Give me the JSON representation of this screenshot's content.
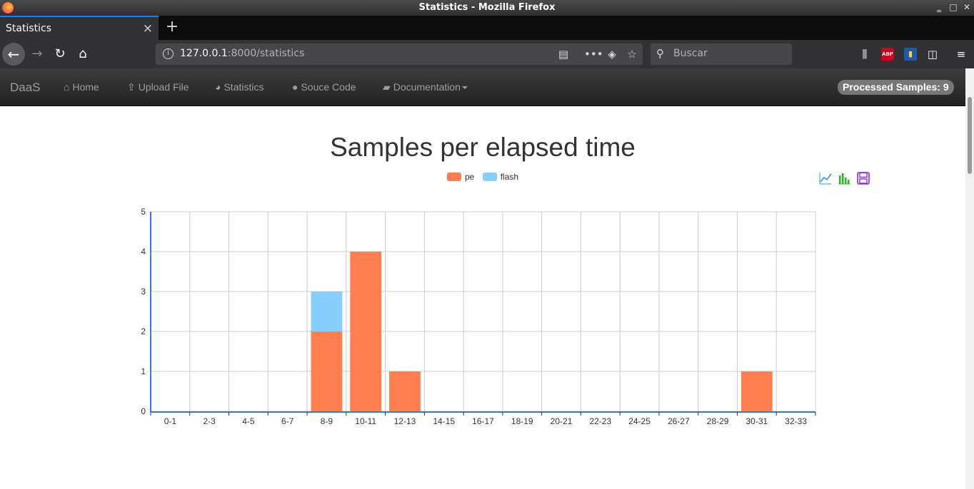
{
  "window": {
    "title": "Statistics - Mozilla Firefox"
  },
  "tab": {
    "label": "Statistics",
    "close": "×",
    "new_tab": "+"
  },
  "urlbar": {
    "host": "127.0.0.1",
    "rest": ":8000/statistics"
  },
  "search": {
    "placeholder": "Buscar"
  },
  "site_nav": {
    "brand": "DaaS",
    "items": [
      {
        "label": "Home",
        "icon": "home-icon"
      },
      {
        "label": "Upload File",
        "icon": "upload-icon"
      },
      {
        "label": "Statistics",
        "icon": "pie-chart-icon"
      },
      {
        "label": "Souce Code",
        "icon": "github-icon"
      },
      {
        "label": "Documentation",
        "icon": "book-icon"
      }
    ],
    "badge": "Processed Samples: 9"
  },
  "toolbox": [
    "line-chart-icon",
    "bar-chart-icon",
    "save-image-icon"
  ],
  "colors": {
    "pe": "#ff7f50",
    "flash": "#87cefa",
    "axis": "#2f7ed8",
    "grid": "#cccccc"
  },
  "chart_data": {
    "type": "bar",
    "stacked": true,
    "title": "Samples per elapsed time",
    "categories": [
      "0-1",
      "2-3",
      "4-5",
      "6-7",
      "8-9",
      "10-11",
      "12-13",
      "14-15",
      "16-17",
      "18-19",
      "20-21",
      "22-23",
      "24-25",
      "26-27",
      "28-29",
      "30-31",
      "32-33"
    ],
    "series": [
      {
        "name": "pe",
        "values": [
          0,
          0,
          0,
          0,
          2,
          4,
          1,
          0,
          0,
          0,
          0,
          0,
          0,
          0,
          0,
          1,
          0
        ]
      },
      {
        "name": "flash",
        "values": [
          0,
          0,
          0,
          0,
          1,
          0,
          0,
          0,
          0,
          0,
          0,
          0,
          0,
          0,
          0,
          0,
          0
        ]
      }
    ],
    "ylim": [
      0,
      5
    ],
    "yticks": [
      "0",
      "1",
      "2",
      "3",
      "4",
      "5"
    ],
    "grid": true,
    "legend": "top-center"
  }
}
